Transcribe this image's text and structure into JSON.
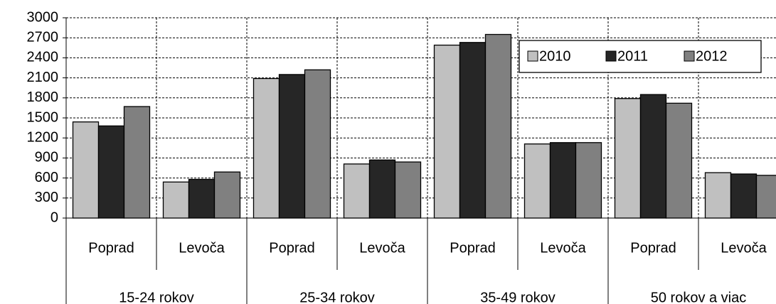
{
  "chart_data": {
    "type": "bar",
    "categories": [
      "Poprad",
      "Levoča",
      "Poprad",
      "Levoča",
      "Poprad",
      "Levoča",
      "Poprad",
      "Levoča"
    ],
    "groups": [
      "15-24 rokov",
      "25-34 rokov",
      "35-49 rokov",
      "50 rokov a viac"
    ],
    "series": [
      {
        "name": "2010",
        "color": "#c0c0c0",
        "values": [
          1440,
          540,
          2090,
          810,
          2590,
          1110,
          1790,
          680
        ]
      },
      {
        "name": "2011",
        "color": "#262626",
        "values": [
          1380,
          580,
          2150,
          870,
          2630,
          1130,
          1850,
          660
        ]
      },
      {
        "name": "2012",
        "color": "#808080",
        "values": [
          1670,
          690,
          2220,
          840,
          2750,
          1130,
          1720,
          640
        ]
      }
    ],
    "ylim": [
      0,
      3000
    ],
    "yticks": [
      0,
      300,
      600,
      900,
      1200,
      1500,
      1800,
      2100,
      2400,
      2700,
      3000
    ],
    "grid": true,
    "legend": "top-right"
  }
}
